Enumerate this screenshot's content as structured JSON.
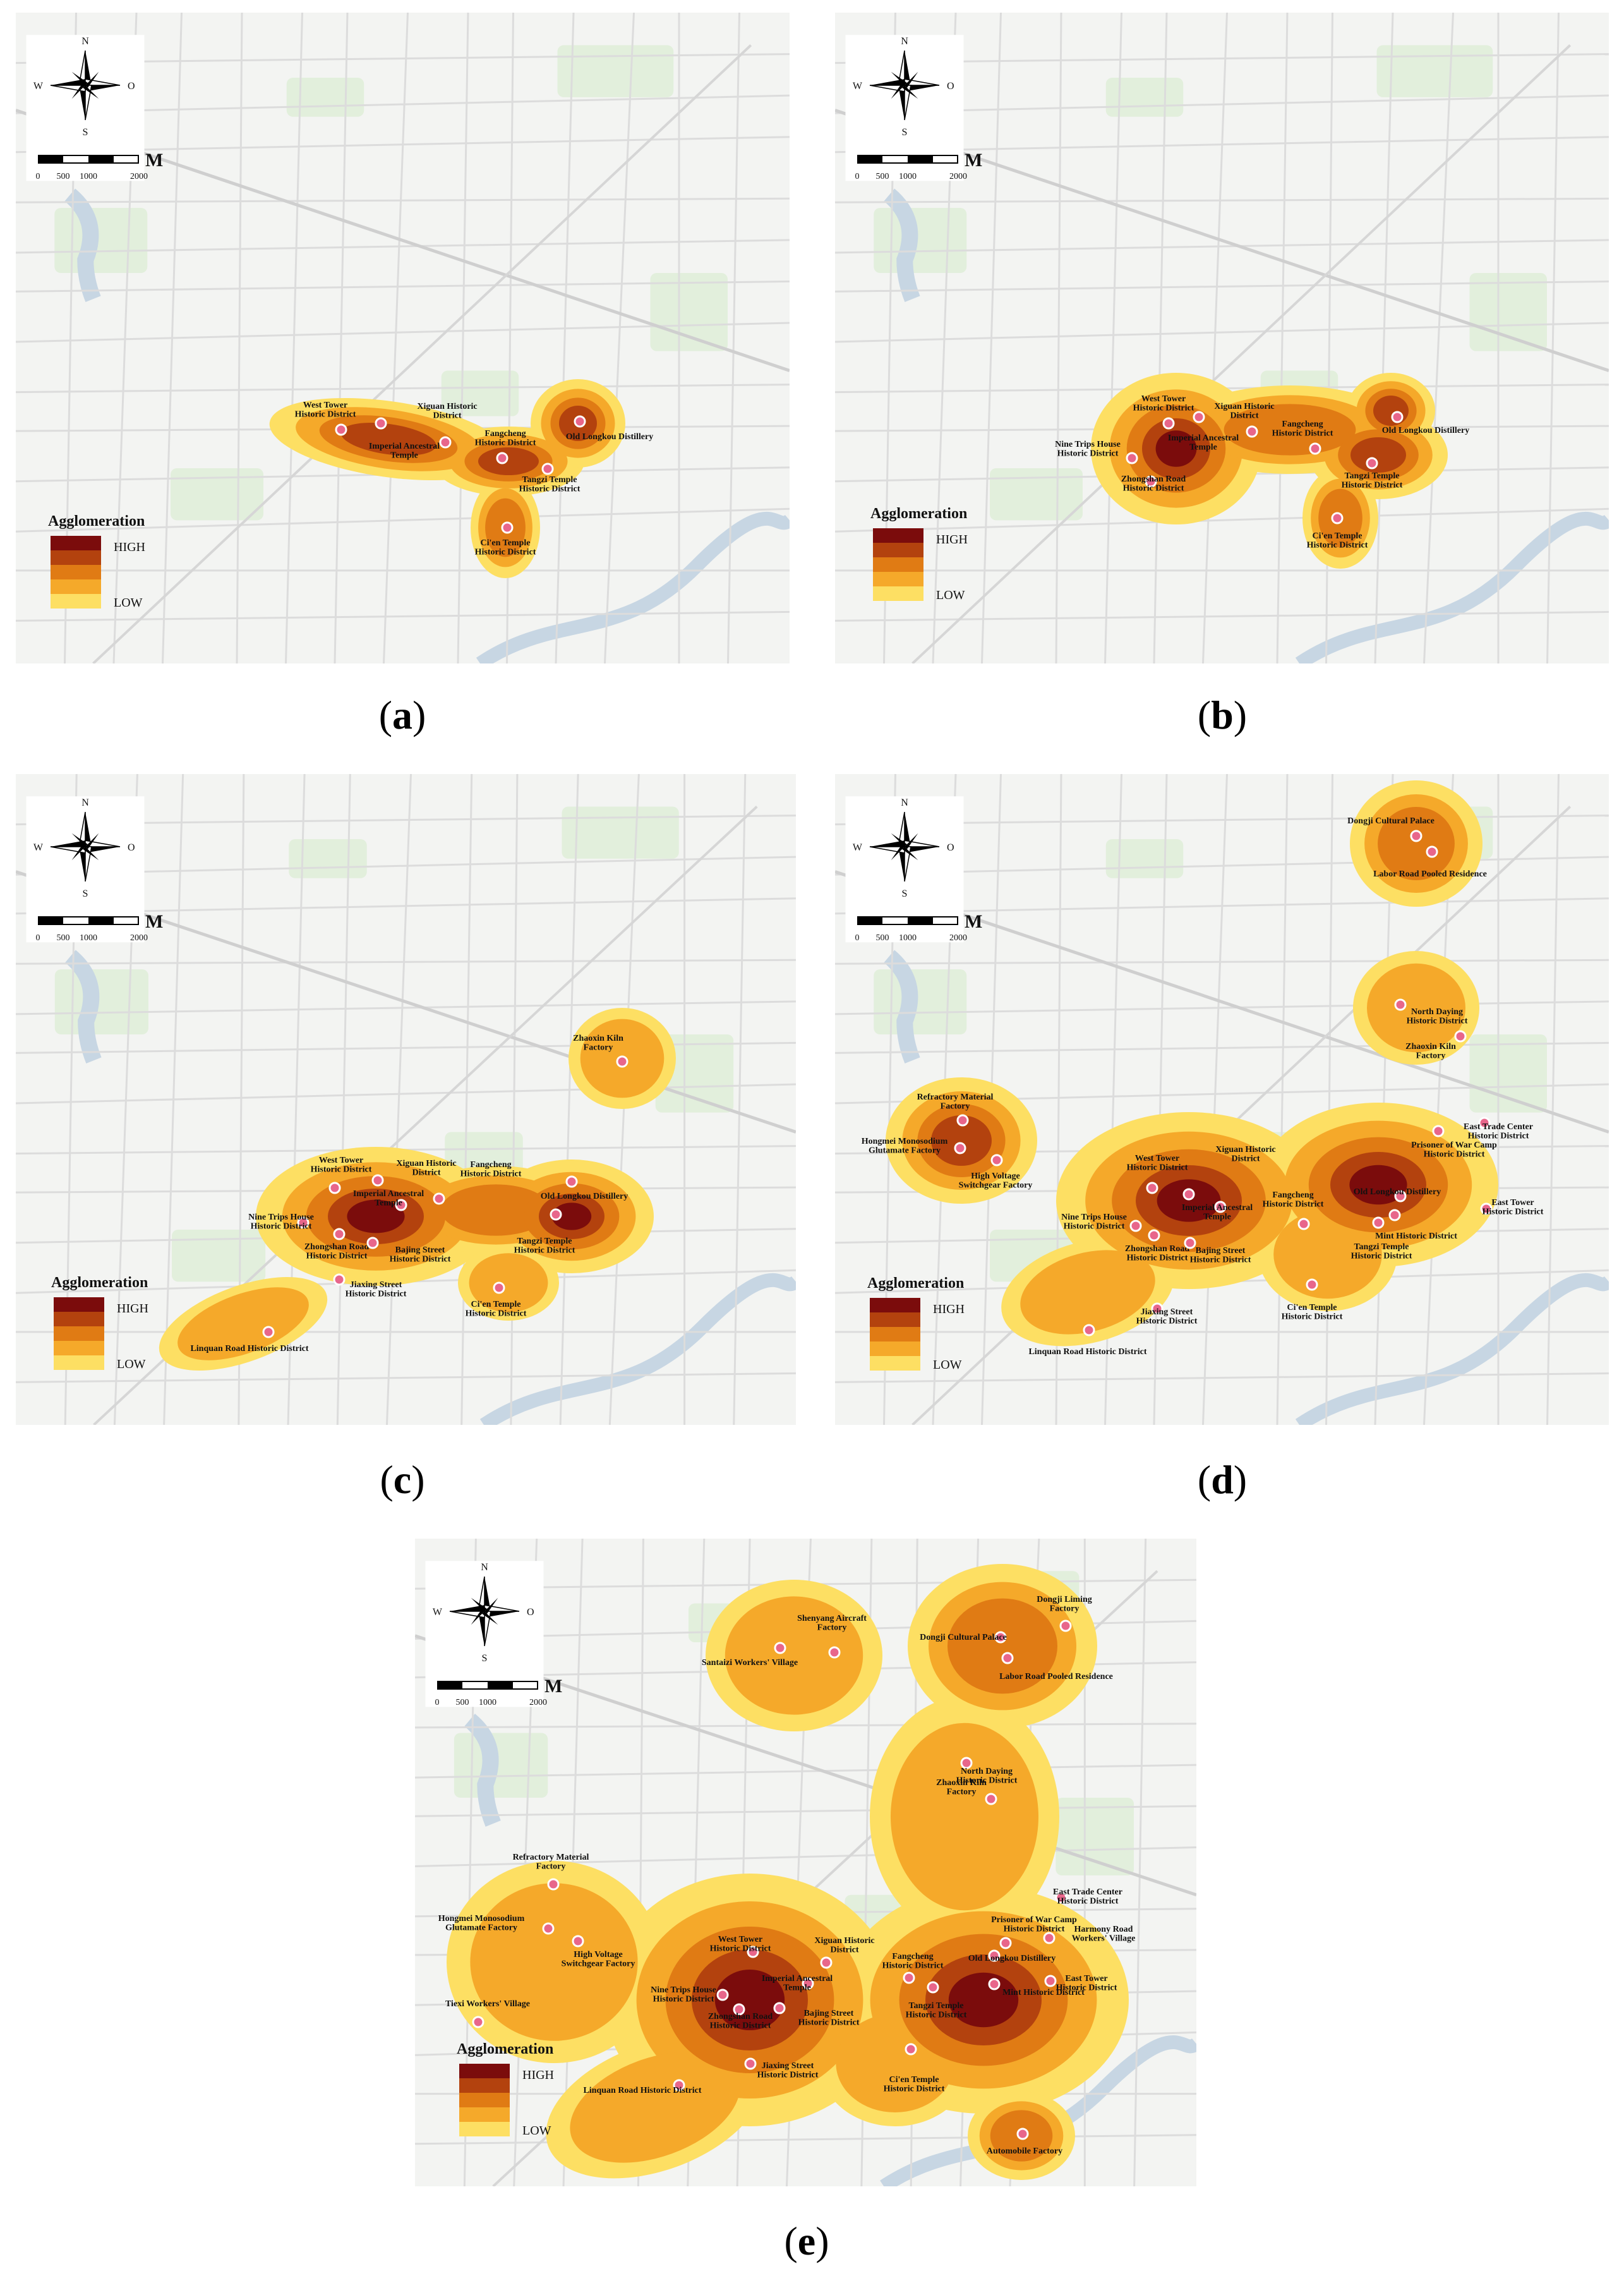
{
  "compass": {
    "n": "N",
    "s": "S",
    "w": "W",
    "o": "O"
  },
  "scalebar": {
    "unit": "M",
    "ticks": [
      "0",
      "500",
      "1000",
      "2000"
    ]
  },
  "legend": {
    "title": "Agglomeration",
    "high": "HIGH",
    "low": "LOW",
    "colors": [
      "#7b0c0c",
      "#b3420e",
      "#e07b14",
      "#f5a92a",
      "#fddf63"
    ]
  },
  "panels": [
    {
      "label": "a",
      "sites": [
        {
          "name": "West Tower\nHistoric District"
        },
        {
          "name": "Xiguan Historic\nDistrict"
        },
        {
          "name": "Imperial Ancestral\nTemple"
        },
        {
          "name": "Fangcheng\nHistoric District"
        },
        {
          "name": "Old Longkou Distillery"
        },
        {
          "name": "Tangzi Temple\nHistoric District"
        },
        {
          "name": "Ci'en Temple\nHistoric District"
        }
      ]
    },
    {
      "label": "b",
      "sites": [
        {
          "name": "West Tower\nHistoric District"
        },
        {
          "name": "Xiguan Historic\nDistrict"
        },
        {
          "name": "Imperial Ancestral\nTemple"
        },
        {
          "name": "Nine Trips House\nHistoric District"
        },
        {
          "name": "Fangcheng\nHistoric District"
        },
        {
          "name": "Old Longkou Distillery"
        },
        {
          "name": "Zhongshan Road\nHistoric District"
        },
        {
          "name": "Tangzi Temple\nHistoric District"
        },
        {
          "name": "Ci'en Temple\nHistoric District"
        }
      ]
    },
    {
      "label": "c",
      "sites": [
        {
          "name": "Zhaoxin Kiln\nFactory"
        },
        {
          "name": "West Tower\nHistoric District"
        },
        {
          "name": "Xiguan Historic\nDistrict"
        },
        {
          "name": "Fangcheng\nHistoric District"
        },
        {
          "name": "Old Longkou Distillery"
        },
        {
          "name": "Imperial Ancestral\nTemple"
        },
        {
          "name": "Nine Trips House\nHistoric District"
        },
        {
          "name": "Zhongshan Road\nHistoric District"
        },
        {
          "name": "Bajing Street\nHistoric District"
        },
        {
          "name": "Tangzi Temple\nHistoric District"
        },
        {
          "name": "Ci'en Temple\nHistoric District"
        },
        {
          "name": "Jiaxing Street\nHistoric District"
        },
        {
          "name": "Linquan Road Historic District"
        }
      ]
    },
    {
      "label": "d",
      "sites": [
        {
          "name": "Dongji Cultural Palace"
        },
        {
          "name": "Labor Road Pooled Residence"
        },
        {
          "name": "North Daying\nHistoric District"
        },
        {
          "name": "Zhaoxin Kiln\nFactory"
        },
        {
          "name": "Refractory Material\nFactory"
        },
        {
          "name": "Hongmei Monosodium\nGlutamate Factory"
        },
        {
          "name": "High Voltage\nSwitchgear Factory"
        },
        {
          "name": "East Trade Center\nHistoric District"
        },
        {
          "name": "Prisoner of War Camp\nHistoric District"
        },
        {
          "name": "West Tower\nHistoric District"
        },
        {
          "name": "Xiguan Historic\nDistrict"
        },
        {
          "name": "Imperial Ancestral\nTemple"
        },
        {
          "name": "Fangcheng\nHistoric District"
        },
        {
          "name": "Old Longkou Distillery"
        },
        {
          "name": "East Tower\nHistoric District"
        },
        {
          "name": "Mint Historic District"
        },
        {
          "name": "Nine Trips House\nHistoric District"
        },
        {
          "name": "Zhongshan Road\nHistoric District"
        },
        {
          "name": "Bajing Street\nHistoric District"
        },
        {
          "name": "Tangzi Temple\nHistoric District"
        },
        {
          "name": "Jiaxing Street\nHistoric District"
        },
        {
          "name": "Ci'en Temple\nHistoric District"
        },
        {
          "name": "Linquan Road Historic District"
        }
      ]
    },
    {
      "label": "e",
      "sites": [
        {
          "name": "Shenyang Aircraft\nFactory"
        },
        {
          "name": "Santaizi Workers' Village"
        },
        {
          "name": "Dongji Liming\nFactory"
        },
        {
          "name": "Dongji Cultural Palace"
        },
        {
          "name": "Labor Road Pooled Residence"
        },
        {
          "name": "North Daying\nHistoric District"
        },
        {
          "name": "Zhaoxin Kiln\nFactory"
        },
        {
          "name": "Refractory Material\nFactory"
        },
        {
          "name": "Hongmei Monosodium\nGlutamate Factory"
        },
        {
          "name": "High Voltage\nSwitchgear Factory"
        },
        {
          "name": "East Trade Center\nHistoric District"
        },
        {
          "name": "Prisoner of War Camp\nHistoric District"
        },
        {
          "name": "Harmony Road\nWorkers' Village"
        },
        {
          "name": "West Tower\nHistoric District"
        },
        {
          "name": "Xiguan Historic\nDistrict"
        },
        {
          "name": "Fangcheng\nHistoric District"
        },
        {
          "name": "Old Longkou Distillery"
        },
        {
          "name": "Imperial Ancestral\nTemple"
        },
        {
          "name": "Nine Trips House\nHistoric District"
        },
        {
          "name": "Zhongshan Road\nHistoric District"
        },
        {
          "name": "East Tower\nHistoric District"
        },
        {
          "name": "Mint Historic District"
        },
        {
          "name": "Bajing Street\nHistoric District"
        },
        {
          "name": "Tiexi Workers' Village"
        },
        {
          "name": "Tangzi Temple\nHistoric District"
        },
        {
          "name": "Jiaxing Street\nHistoric District"
        },
        {
          "name": "Ci'en Temple\nHistoric District"
        },
        {
          "name": "Linquan Road Historic District"
        },
        {
          "name": "Automobile Factory"
        }
      ]
    }
  ]
}
